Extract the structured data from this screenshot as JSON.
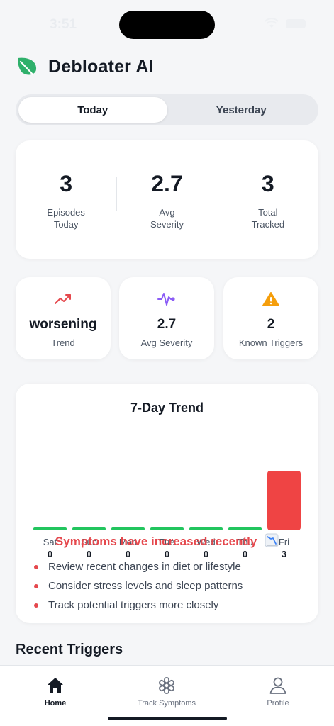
{
  "status_bar": {
    "time": "3:51"
  },
  "app": {
    "title": "Debloater AI",
    "logo": "leaf-icon",
    "brand_color": "#2fb06b"
  },
  "segments": [
    {
      "label": "Today",
      "active": true
    },
    {
      "label": "Yesterday",
      "active": false
    }
  ],
  "summary": [
    {
      "value": "3",
      "label": "Episodes\nToday"
    },
    {
      "value": "2.7",
      "label": "Avg\nSeverity"
    },
    {
      "value": "3",
      "label": "Total\nTracked"
    }
  ],
  "stats": [
    {
      "icon": "trending-up-icon",
      "value": "worsening",
      "label": "Trend",
      "color": "#e5484d"
    },
    {
      "icon": "pulse-icon",
      "value": "2.7",
      "label": "Avg Severity",
      "color": "#8b5cf6"
    },
    {
      "icon": "warning-icon",
      "value": "2",
      "label": "Known Triggers",
      "color": "#f59e0b"
    }
  ],
  "trend": {
    "title": "7-Day Trend",
    "message": "Symptoms have increased recently",
    "tips": [
      "Review recent changes in diet or lifestyle",
      "Consider stress levels and sleep patterns",
      "Track potential triggers more closely"
    ]
  },
  "chart_data": {
    "type": "bar",
    "title": "7-Day Trend",
    "categories": [
      "Sat",
      "Sun",
      "Mon",
      "Tue",
      "Wed",
      "Thu",
      "Fri"
    ],
    "values": [
      0,
      0,
      0,
      0,
      0,
      0,
      3
    ],
    "ylim": [
      0,
      3
    ],
    "colors": {
      "zero": "#22c55e",
      "nonzero": "#ef4444"
    }
  },
  "recent_triggers": {
    "title": "Recent Triggers"
  },
  "tabbar": [
    {
      "label": "Home",
      "icon": "home-icon",
      "active": true
    },
    {
      "label": "Track Symptoms",
      "icon": "symptoms-icon",
      "active": false
    },
    {
      "label": "Profile",
      "icon": "profile-icon",
      "active": false
    }
  ]
}
